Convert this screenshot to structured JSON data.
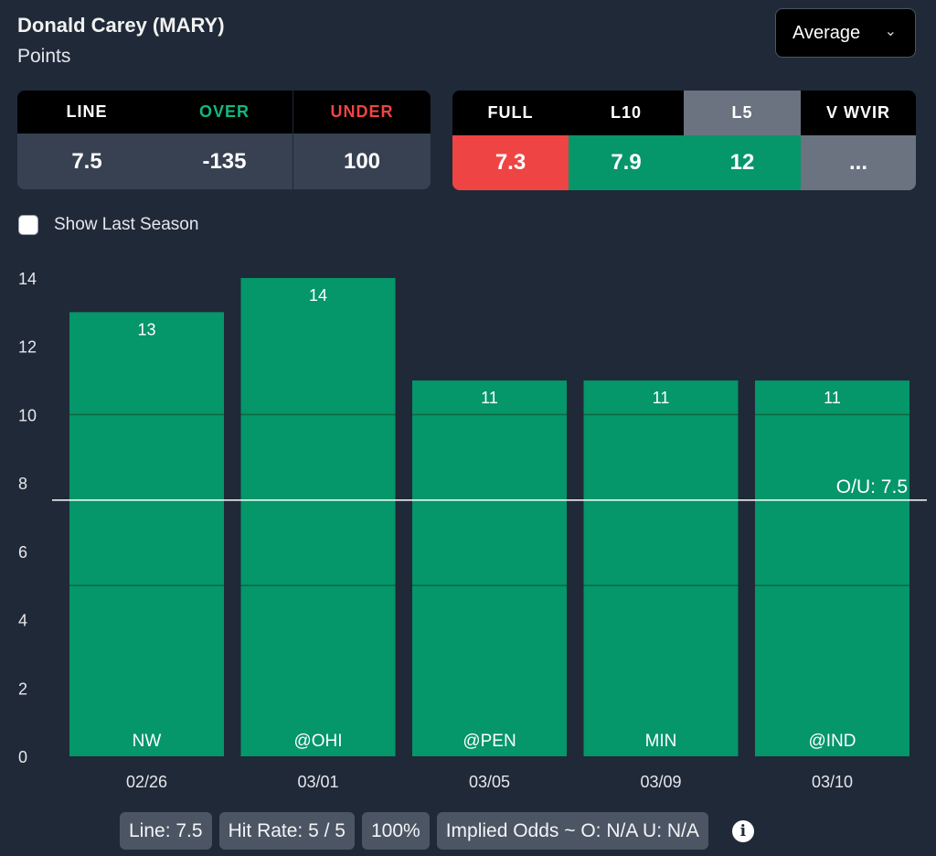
{
  "header": {
    "title": "Donald Carey (MARY)",
    "subtitle": "Points"
  },
  "dropdown": {
    "selected": "Average",
    "icon": "chevron-down-icon"
  },
  "odds_table": {
    "headers": [
      "LINE",
      "OVER",
      "UNDER"
    ],
    "values": [
      "7.5",
      "-135",
      "100"
    ],
    "colors": {
      "over": "#10b981",
      "under": "#ef4444"
    }
  },
  "splits_table": {
    "headers": [
      "FULL",
      "L10",
      "L5",
      "V WVIR"
    ],
    "values": [
      "7.3",
      "7.9",
      "12",
      "..."
    ],
    "selected": "L5",
    "colors": [
      "#ef4444",
      "#059669",
      "#059669",
      "#6b7280"
    ]
  },
  "checkbox": {
    "label": "Show Last Season",
    "checked": false
  },
  "chart_data": {
    "type": "bar",
    "categories": [
      "02/26",
      "03/01",
      "03/05",
      "03/09",
      "03/10"
    ],
    "opponents": [
      "NW",
      "@OHI",
      "@PEN",
      "MIN",
      "@IND"
    ],
    "values": [
      13,
      14,
      11,
      11,
      11
    ],
    "ylim": [
      0,
      14
    ],
    "yticks": [
      0,
      2,
      4,
      6,
      8,
      10,
      12,
      14
    ],
    "line": {
      "value": 7.5,
      "label": "O/U: 7.5"
    },
    "bar_color": "#059669",
    "grid": false
  },
  "footer": {
    "pills": [
      "Line: 7.5",
      "Hit Rate: 5 / 5",
      "100%",
      "Implied Odds ~ O: N/A U: N/A"
    ],
    "info_icon": "info-icon"
  }
}
